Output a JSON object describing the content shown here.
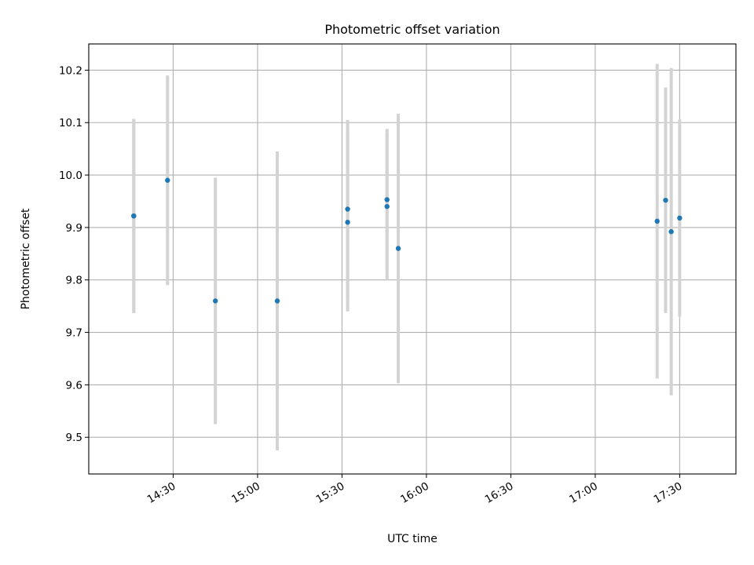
{
  "chart_data": {
    "type": "scatter",
    "title": "Photometric offset variation",
    "xlabel": "UTC time",
    "ylabel": "Photometric offset",
    "xlim": [
      "14:00",
      "17:50"
    ],
    "ylim": [
      9.43,
      10.25
    ],
    "grid": true,
    "x_ticks": [
      "14:30",
      "15:00",
      "15:30",
      "16:00",
      "16:30",
      "17:00",
      "17:30"
    ],
    "y_ticks": [
      "9.5",
      "9.6",
      "9.7",
      "9.8",
      "9.9",
      "10.0",
      "10.1",
      "10.2"
    ],
    "error_bar_color": "#d3d3d3",
    "point_color": "#1f77b4",
    "points": [
      {
        "x": "14:16",
        "y": 9.922,
        "yerr": 0.185
      },
      {
        "x": "14:16",
        "y": 9.922,
        "yerr": 0.185
      },
      {
        "x": "14:28",
        "y": 9.99,
        "yerr": 0.2
      },
      {
        "x": "14:45",
        "y": 9.76,
        "yerr": 0.235
      },
      {
        "x": "15:07",
        "y": 9.76,
        "yerr": 0.285
      },
      {
        "x": "15:32",
        "y": 9.935,
        "yerr": 0.17
      },
      {
        "x": "15:32",
        "y": 9.91,
        "yerr": 0.17
      },
      {
        "x": "15:46",
        "y": 9.953,
        "yerr": 0.135
      },
      {
        "x": "15:46",
        "y": 9.94,
        "yerr": 0.14
      },
      {
        "x": "15:50",
        "y": 9.86,
        "yerr": 0.257
      },
      {
        "x": "17:22",
        "y": 9.912,
        "yerr": 0.3
      },
      {
        "x": "17:25",
        "y": 9.952,
        "yerr": 0.215
      },
      {
        "x": "17:27",
        "y": 9.892,
        "yerr": 0.312
      },
      {
        "x": "17:30",
        "y": 9.918,
        "yerr": 0.188
      }
    ]
  }
}
